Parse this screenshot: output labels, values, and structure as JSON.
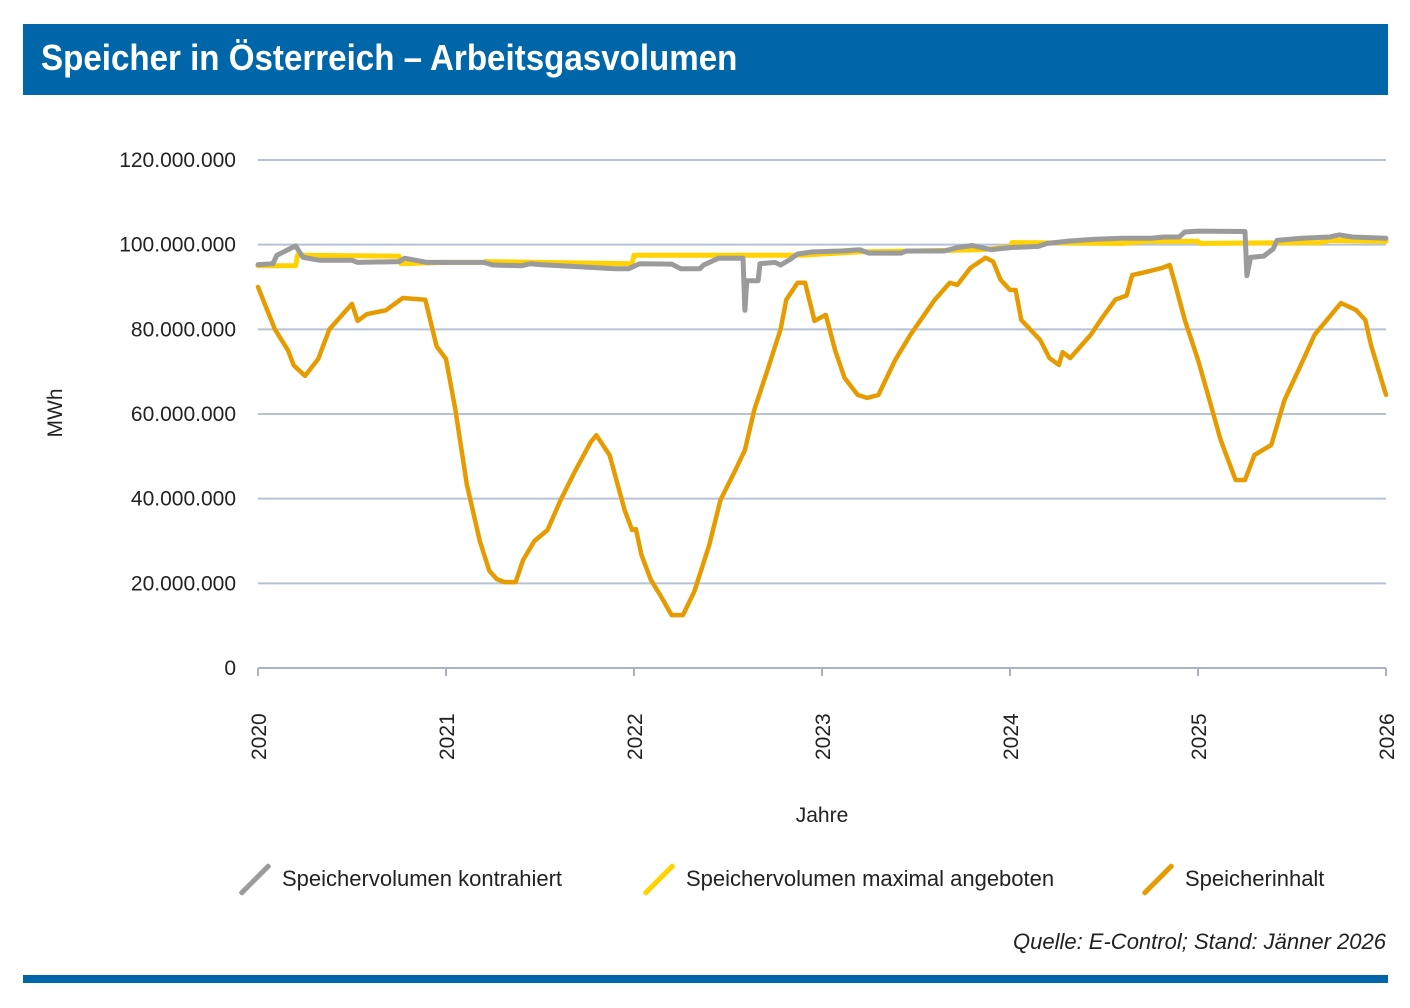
{
  "header": {
    "title": "Speicher in Österreich – Arbeitsgasvolumen"
  },
  "source": "Quelle: E-Control; Stand: Jänner 2026",
  "colors": {
    "header": "#0066aa",
    "kontrahiert": "#9b9b9b",
    "maximal": "#ffd200",
    "inhalt": "#e69c00",
    "grid": "#b8c2d6"
  },
  "chart_data": {
    "type": "line",
    "title": "",
    "xlabel": "Jahre",
    "ylabel": "MWh",
    "xlim": [
      2020,
      2026
    ],
    "ylim": [
      0,
      120000000
    ],
    "grid": true,
    "legend_position": "bottom",
    "x_ticks": [
      "2020",
      "2021",
      "2022",
      "2023",
      "2024",
      "2025",
      "2026"
    ],
    "y_ticks": [
      "0",
      "20.000.000",
      "40.000.000",
      "60.000.000",
      "80.000.000",
      "100.000.000",
      "120.000.000"
    ],
    "series": [
      {
        "name": "Speichervolumen kontrahiert",
        "color": "#9b9b9b",
        "points": [
          [
            2020.0,
            95300000
          ],
          [
            2020.08,
            95500000
          ],
          [
            2020.1,
            97500000
          ],
          [
            2020.2,
            99700000
          ],
          [
            2020.24,
            97000000
          ],
          [
            2020.33,
            96300000
          ],
          [
            2020.5,
            96300000
          ],
          [
            2020.53,
            95800000
          ],
          [
            2020.75,
            96000000
          ],
          [
            2020.78,
            96800000
          ],
          [
            2020.9,
            95800000
          ],
          [
            2021.2,
            95800000
          ],
          [
            2021.25,
            95200000
          ],
          [
            2021.4,
            95000000
          ],
          [
            2021.45,
            95500000
          ],
          [
            2021.5,
            95300000
          ],
          [
            2021.78,
            94600000
          ],
          [
            2021.9,
            94300000
          ],
          [
            2021.97,
            94300000
          ],
          [
            2022.03,
            95500000
          ],
          [
            2022.2,
            95400000
          ],
          [
            2022.25,
            94300000
          ],
          [
            2022.35,
            94300000
          ],
          [
            2022.37,
            95200000
          ],
          [
            2022.45,
            96800000
          ],
          [
            2022.58,
            96800000
          ],
          [
            2022.59,
            84500000
          ],
          [
            2022.6,
            91500000
          ],
          [
            2022.66,
            91500000
          ],
          [
            2022.67,
            95500000
          ],
          [
            2022.75,
            95800000
          ],
          [
            2022.78,
            95200000
          ],
          [
            2022.83,
            96500000
          ],
          [
            2022.87,
            97800000
          ],
          [
            2022.95,
            98300000
          ],
          [
            2023.1,
            98500000
          ],
          [
            2023.2,
            98800000
          ],
          [
            2023.25,
            98000000
          ],
          [
            2023.42,
            98000000
          ],
          [
            2023.45,
            98500000
          ],
          [
            2023.65,
            98500000
          ],
          [
            2023.72,
            99300000
          ],
          [
            2023.8,
            99800000
          ],
          [
            2023.86,
            99200000
          ],
          [
            2023.9,
            98800000
          ],
          [
            2024.0,
            99300000
          ],
          [
            2024.15,
            99600000
          ],
          [
            2024.2,
            100300000
          ],
          [
            2024.3,
            100800000
          ],
          [
            2024.45,
            101300000
          ],
          [
            2024.6,
            101500000
          ],
          [
            2024.75,
            101500000
          ],
          [
            2024.82,
            101800000
          ],
          [
            2024.9,
            101800000
          ],
          [
            2024.93,
            103000000
          ],
          [
            2025.0,
            103200000
          ],
          [
            2025.25,
            103100000
          ],
          [
            2025.26,
            92700000
          ],
          [
            2025.28,
            97000000
          ],
          [
            2025.35,
            97300000
          ],
          [
            2025.4,
            99000000
          ],
          [
            2025.42,
            101000000
          ],
          [
            2025.55,
            101500000
          ],
          [
            2025.7,
            101800000
          ],
          [
            2025.75,
            102300000
          ],
          [
            2025.82,
            101800000
          ],
          [
            2026.0,
            101500000
          ]
        ]
      },
      {
        "name": "Speichervolumen maximal angeboten",
        "color": "#ffd200",
        "points": [
          [
            2020.0,
            95000000
          ],
          [
            2020.2,
            95000000
          ],
          [
            2020.21,
            97500000
          ],
          [
            2020.75,
            97300000
          ],
          [
            2020.76,
            95500000
          ],
          [
            2021.0,
            95800000
          ],
          [
            2021.2,
            95800000
          ],
          [
            2021.21,
            96000000
          ],
          [
            2021.99,
            95500000
          ],
          [
            2022.0,
            97500000
          ],
          [
            2022.9,
            97500000
          ],
          [
            2023.0,
            97800000
          ],
          [
            2023.2,
            98300000
          ],
          [
            2023.5,
            98500000
          ],
          [
            2023.85,
            98800000
          ],
          [
            2024.0,
            99500000
          ],
          [
            2024.01,
            100500000
          ],
          [
            2024.6,
            100300000
          ],
          [
            2024.72,
            100800000
          ],
          [
            2025.0,
            100800000
          ],
          [
            2025.01,
            100300000
          ],
          [
            2025.65,
            100500000
          ],
          [
            2025.7,
            101000000
          ],
          [
            2026.0,
            100800000
          ]
        ]
      },
      {
        "name": "Speicherinhalt",
        "color": "#e69c00",
        "points": [
          [
            2020.0,
            90000000
          ],
          [
            2020.09,
            80000000
          ],
          [
            2020.16,
            75000000
          ],
          [
            2020.19,
            71500000
          ],
          [
            2020.25,
            69000000
          ],
          [
            2020.32,
            73000000
          ],
          [
            2020.38,
            80000000
          ],
          [
            2020.5,
            86000000
          ],
          [
            2020.53,
            82000000
          ],
          [
            2020.58,
            83600000
          ],
          [
            2020.68,
            84500000
          ],
          [
            2020.77,
            87400000
          ],
          [
            2020.89,
            87000000
          ],
          [
            2020.95,
            76000000
          ],
          [
            2021.0,
            73000000
          ],
          [
            2021.05,
            61000000
          ],
          [
            2021.11,
            43500000
          ],
          [
            2021.18,
            30000000
          ],
          [
            2021.23,
            23000000
          ],
          [
            2021.27,
            21000000
          ],
          [
            2021.31,
            20300000
          ],
          [
            2021.37,
            20300000
          ],
          [
            2021.41,
            25500000
          ],
          [
            2021.47,
            30000000
          ],
          [
            2021.54,
            32600000
          ],
          [
            2021.61,
            39700000
          ],
          [
            2021.69,
            46800000
          ],
          [
            2021.77,
            53400000
          ],
          [
            2021.8,
            55000000
          ],
          [
            2021.87,
            50300000
          ],
          [
            2021.95,
            37300000
          ],
          [
            2021.99,
            32600000
          ],
          [
            2022.01,
            32800000
          ],
          [
            2022.04,
            26700000
          ],
          [
            2022.09,
            20800000
          ],
          [
            2022.14,
            17200000
          ],
          [
            2022.2,
            12500000
          ],
          [
            2022.26,
            12500000
          ],
          [
            2022.32,
            18000000
          ],
          [
            2022.4,
            29000000
          ],
          [
            2022.46,
            39700000
          ],
          [
            2022.54,
            46800000
          ],
          [
            2022.59,
            51500000
          ],
          [
            2022.64,
            61000000
          ],
          [
            2022.71,
            70400000
          ],
          [
            2022.78,
            80000000
          ],
          [
            2022.81,
            87000000
          ],
          [
            2022.87,
            91000000
          ],
          [
            2022.91,
            91000000
          ],
          [
            2022.96,
            82000000
          ],
          [
            2023.02,
            83400000
          ],
          [
            2023.07,
            75000000
          ],
          [
            2023.12,
            68500000
          ],
          [
            2023.19,
            64500000
          ],
          [
            2023.24,
            63800000
          ],
          [
            2023.3,
            64500000
          ],
          [
            2023.39,
            72800000
          ],
          [
            2023.47,
            78700000
          ],
          [
            2023.6,
            87000000
          ],
          [
            2023.68,
            91000000
          ],
          [
            2023.72,
            90500000
          ],
          [
            2023.79,
            94500000
          ],
          [
            2023.87,
            96900000
          ],
          [
            2023.91,
            96000000
          ],
          [
            2023.95,
            91700000
          ],
          [
            2024.0,
            89300000
          ],
          [
            2024.03,
            89300000
          ],
          [
            2024.06,
            82200000
          ],
          [
            2024.16,
            77500000
          ],
          [
            2024.21,
            73200000
          ],
          [
            2024.26,
            71600000
          ],
          [
            2024.28,
            74600000
          ],
          [
            2024.32,
            73200000
          ],
          [
            2024.43,
            78700000
          ],
          [
            2024.49,
            82700000
          ],
          [
            2024.56,
            87000000
          ],
          [
            2024.62,
            88000000
          ],
          [
            2024.65,
            92800000
          ],
          [
            2024.7,
            93300000
          ],
          [
            2024.81,
            94500000
          ],
          [
            2024.85,
            95200000
          ],
          [
            2024.88,
            90500000
          ],
          [
            2024.93,
            82200000
          ],
          [
            2025.0,
            72800000
          ],
          [
            2025.05,
            65000000
          ],
          [
            2025.12,
            53900000
          ],
          [
            2025.2,
            44400000
          ],
          [
            2025.25,
            44400000
          ],
          [
            2025.3,
            50300000
          ],
          [
            2025.39,
            52700000
          ],
          [
            2025.46,
            63300000
          ],
          [
            2025.54,
            70900000
          ],
          [
            2025.62,
            78700000
          ],
          [
            2025.76,
            86200000
          ],
          [
            2025.84,
            84600000
          ],
          [
            2025.89,
            82200000
          ],
          [
            2025.92,
            76300000
          ],
          [
            2025.96,
            70400000
          ],
          [
            2026.0,
            64500000
          ]
        ]
      }
    ]
  }
}
